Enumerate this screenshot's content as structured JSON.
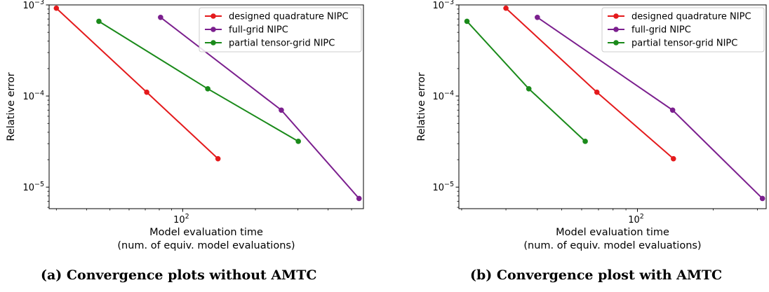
{
  "chart_data": [
    {
      "type": "line",
      "panel_caption": "(a) Convergence plots without AMTC",
      "xlabel": [
        "Model evaluation time",
        "(num. of equiv. model evaluations)"
      ],
      "ylabel": "Relative error",
      "xscale": "log",
      "yscale": "log",
      "xlim": [
        28,
        560
      ],
      "ylim": [
        5.8e-06,
        0.001
      ],
      "xticks": [
        {
          "value": 100,
          "base": "10",
          "exp": "2"
        }
      ],
      "yticks": [
        {
          "value": 0.001,
          "base": "10",
          "exp": "−3"
        },
        {
          "value": 0.0001,
          "base": "10",
          "exp": "−4"
        },
        {
          "value": 1e-05,
          "base": "10",
          "exp": "−5"
        }
      ],
      "legend_position": "top-right",
      "series": [
        {
          "name": "designed quadrature NIPC",
          "color": "#e41a1c",
          "x": [
            30,
            71,
            140
          ],
          "y": [
            0.00092,
            0.00011,
            2.05e-05
          ]
        },
        {
          "name": "full-grid NIPC",
          "color": "#7b1f8e",
          "x": [
            81,
            256,
            537
          ],
          "y": [
            0.00073,
            7e-05,
            7.5e-06
          ]
        },
        {
          "name": "partial tensor-grid NIPC",
          "color": "#1a8a1a",
          "x": [
            45,
            127,
            301
          ],
          "y": [
            0.00066,
            0.00012,
            3.18e-05
          ]
        }
      ]
    },
    {
      "type": "line",
      "panel_caption": "(b) Convergence plost with AMTC",
      "xlabel": [
        "Model evaluation time",
        "(num. of equiv. model evaluations)"
      ],
      "ylabel": "Relative error",
      "xscale": "log",
      "yscale": "log",
      "xlim": [
        19.5,
        325
      ],
      "ylim": [
        5.8e-06,
        0.001
      ],
      "xticks": [
        {
          "value": 100,
          "base": "10",
          "exp": "2"
        }
      ],
      "yticks": [
        {
          "value": 0.001,
          "base": "10",
          "exp": "−3"
        },
        {
          "value": 0.0001,
          "base": "10",
          "exp": "−4"
        },
        {
          "value": 1e-05,
          "base": "10",
          "exp": "−5"
        }
      ],
      "legend_position": "top-right",
      "series": [
        {
          "name": "designed quadrature NIPC",
          "color": "#e41a1c",
          "x": [
            30,
            69,
            139
          ],
          "y": [
            0.00092,
            0.00011,
            2.05e-05
          ]
        },
        {
          "name": "full-grid NIPC",
          "color": "#7b1f8e",
          "x": [
            40,
            138,
            314
          ],
          "y": [
            0.00073,
            7e-05,
            7.5e-06
          ]
        },
        {
          "name": "partial tensor-grid NIPC",
          "color": "#1a8a1a",
          "x": [
            21,
            37,
            62
          ],
          "y": [
            0.00066,
            0.00012,
            3.18e-05
          ]
        }
      ]
    }
  ]
}
